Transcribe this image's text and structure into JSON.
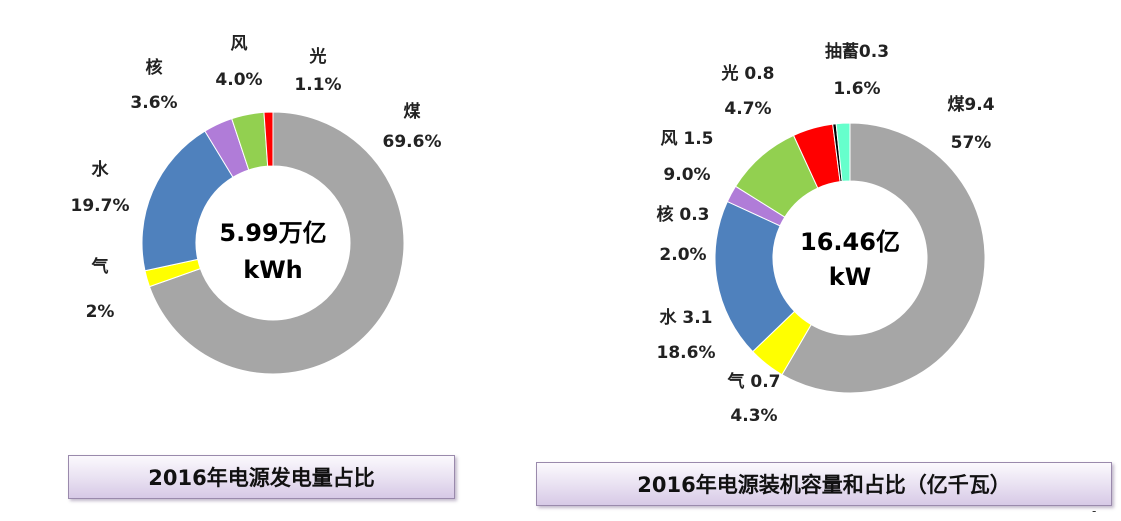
{
  "chart_data": [
    {
      "type": "pie",
      "center_text": [
        "5.99万亿",
        "kWh"
      ],
      "caption": "2016年电源发电量占比",
      "slices": [
        {
          "label": "煤",
          "value": 69.6,
          "display": "69.6%",
          "color": "#a6a6a6"
        },
        {
          "label": "气",
          "value": 2.0,
          "display": "2%",
          "color": "#ffff00"
        },
        {
          "label": "水",
          "value": 19.7,
          "display": "19.7%",
          "color": "#4f81bd"
        },
        {
          "label": "核",
          "value": 3.6,
          "display": "3.6%",
          "color": "#b07cd8"
        },
        {
          "label": "风",
          "value": 4.0,
          "display": "4.0%",
          "color": "#92d050"
        },
        {
          "label": "光",
          "value": 1.1,
          "display": "1.1%",
          "color": "#ff0000"
        }
      ]
    },
    {
      "type": "pie",
      "center_text": [
        "16.46亿",
        "kW"
      ],
      "caption": "2016年电源装机容量和占比（亿千瓦）",
      "slices": [
        {
          "label": "煤9.4",
          "value": 57.0,
          "display": "57%",
          "color": "#a6a6a6"
        },
        {
          "label": "气 0.7",
          "value": 4.3,
          "display": "4.3%",
          "color": "#ffff00"
        },
        {
          "label": "水 3.1",
          "value": 18.6,
          "display": "18.6%",
          "color": "#4f81bd"
        },
        {
          "label": "核 0.3",
          "value": 2.0,
          "display": "2.0%",
          "color": "#b07cd8"
        },
        {
          "label": "风 1.5",
          "value": 9.0,
          "display": "9.0%",
          "color": "#92d050"
        },
        {
          "label": "光 0.8",
          "value": 4.7,
          "display": "4.7%",
          "color": "#ff0000"
        },
        {
          "label": "",
          "value": 0.4,
          "display": "",
          "color": "#000000"
        },
        {
          "label": "抽蓄0.3",
          "value": 1.6,
          "display": "1.6%",
          "color": "#66ffcc"
        }
      ]
    }
  ],
  "page_mark": "-"
}
